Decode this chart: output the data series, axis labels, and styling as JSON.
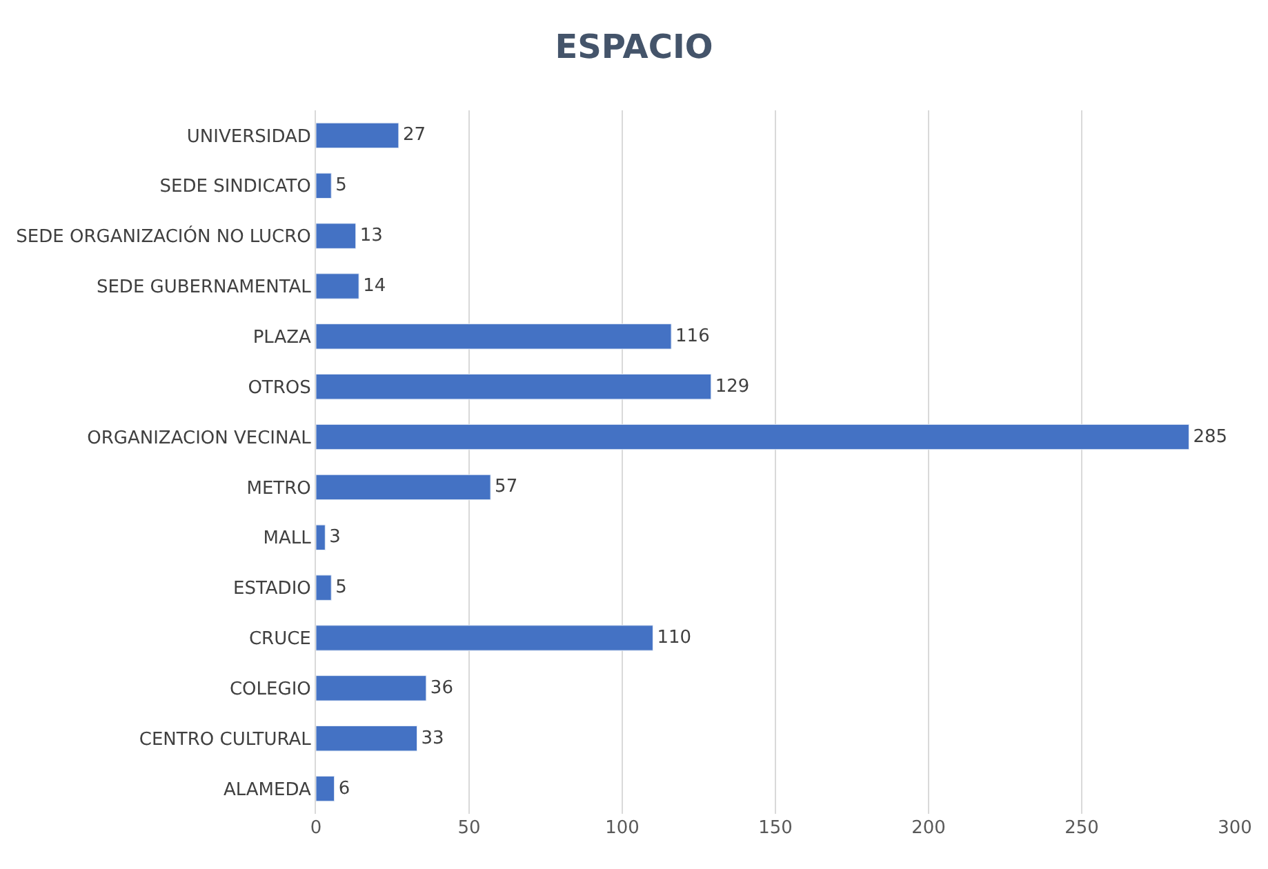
{
  "chart_data": {
    "type": "bar",
    "orientation": "horizontal",
    "title": "ESPACIO",
    "categories": [
      "UNIVERSIDAD",
      "SEDE SINDICATO",
      "SEDE ORGANIZACIÓN NO LUCRO",
      "SEDE GUBERNAMENTAL",
      "PLAZA",
      "OTROS",
      "ORGANIZACION VECINAL",
      "METRO",
      "MALL",
      "ESTADIO",
      "CRUCE",
      "COLEGIO",
      "CENTRO CULTURAL",
      "ALAMEDA"
    ],
    "values": [
      27,
      5,
      13,
      14,
      116,
      129,
      285,
      57,
      3,
      5,
      110,
      36,
      33,
      6
    ],
    "color": "#4472c4",
    "xlim": [
      0,
      300
    ],
    "xticks": [
      0,
      50,
      100,
      150,
      200,
      250,
      300
    ],
    "grid": "x",
    "data_labels": true
  }
}
